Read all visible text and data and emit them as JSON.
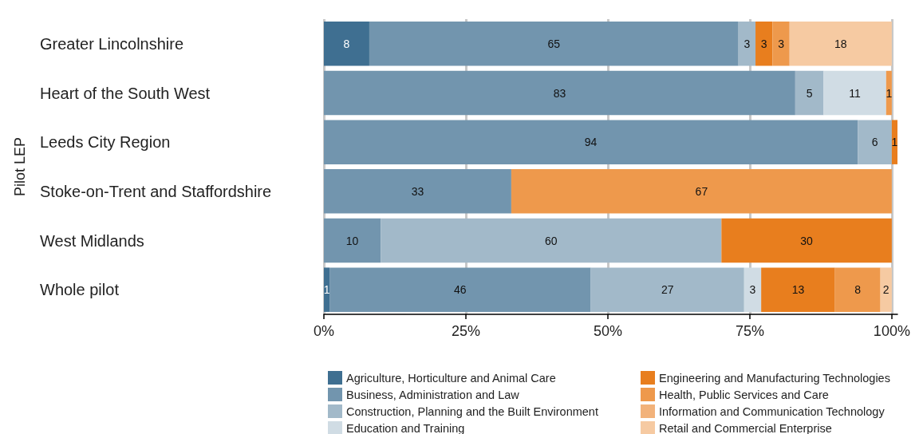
{
  "chart_data": {
    "type": "bar",
    "orientation": "horizontal",
    "stacked": true,
    "ylabel": "Pilot LEP",
    "categories": [
      "Greater Lincolnshire",
      "Heart of the South West",
      "Leeds City Region",
      "Stoke-on-Trent and Staffordshire",
      "West Midlands",
      "Whole pilot"
    ],
    "series": [
      {
        "name": "Agriculture, Horticulture and Animal Care",
        "color": "#3f6f91",
        "values": [
          8,
          null,
          null,
          null,
          null,
          1
        ]
      },
      {
        "name": "Business, Administration and Law",
        "color": "#7295ae",
        "values": [
          65,
          83,
          94,
          33,
          10,
          46
        ]
      },
      {
        "name": "Construction, Planning and the Built Environment",
        "color": "#a2b9c9",
        "values": [
          3,
          5,
          6,
          null,
          60,
          27
        ]
      },
      {
        "name": "Education and Training",
        "color": "#d0dce4",
        "values": [
          null,
          11,
          null,
          null,
          null,
          3
        ]
      },
      {
        "name": "Engineering and Manufacturing Technologies",
        "color": "#e87e1e",
        "values": [
          3,
          null,
          1,
          null,
          30,
          13
        ]
      },
      {
        "name": "Health, Public Services and Care",
        "color": "#ee994c",
        "values": [
          3,
          1,
          null,
          67,
          null,
          8
        ]
      },
      {
        "name": "Information and Communication Technology",
        "color": "#f2b27a",
        "values": [
          null,
          null,
          null,
          null,
          null,
          null
        ]
      },
      {
        "name": "Retail and Commercial Enterprise",
        "color": "#f6caa2",
        "values": [
          18,
          null,
          null,
          null,
          null,
          2
        ]
      }
    ],
    "xlim": [
      0,
      101
    ],
    "xticks": [
      {
        "value": 0,
        "label": "0%"
      },
      {
        "value": 25,
        "label": "25%"
      },
      {
        "value": 50,
        "label": "50%"
      },
      {
        "value": 75,
        "label": "75%"
      },
      {
        "value": 100,
        "label": "100%"
      }
    ],
    "grid": "x",
    "legend": "bottom",
    "data_labels": true
  }
}
